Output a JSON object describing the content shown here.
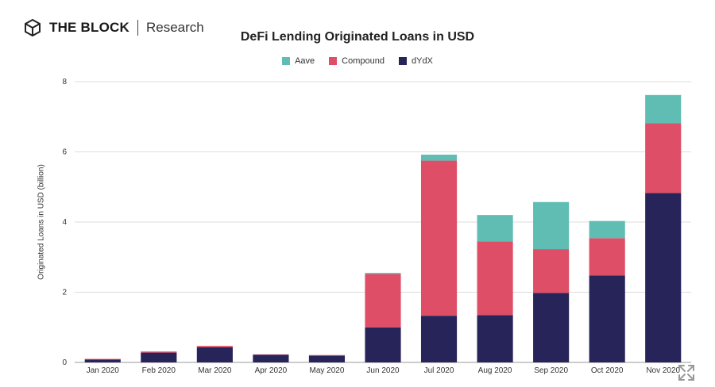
{
  "brand": {
    "name": "THE BLOCK",
    "sub": "Research"
  },
  "chart_data": {
    "type": "bar",
    "stacked": true,
    "title": "DeFi Lending Originated Loans in USD",
    "ylabel": "Originated Loans in USD (billion)",
    "xlabel": "",
    "ylim": [
      0,
      8
    ],
    "yticks": [
      0,
      2,
      4,
      6,
      8
    ],
    "grid": true,
    "legend_position": "top",
    "categories": [
      "Jan 2020",
      "Feb 2020",
      "Mar 2020",
      "Apr 2020",
      "May 2020",
      "Jun 2020",
      "Jul 2020",
      "Aug 2020",
      "Sep 2020",
      "Oct 2020",
      "Nov 2020"
    ],
    "series": [
      {
        "name": "dYdX",
        "color": "#27245a",
        "values": [
          0.08,
          0.28,
          0.43,
          0.22,
          0.19,
          1.0,
          1.33,
          1.35,
          1.98,
          2.48,
          4.83
        ]
      },
      {
        "name": "Compound",
        "color": "#de4e67",
        "values": [
          0.02,
          0.03,
          0.04,
          0.01,
          0.02,
          1.52,
          4.42,
          2.1,
          1.25,
          1.06,
          1.99
        ]
      },
      {
        "name": "Aave",
        "color": "#5fbdb3",
        "values": [
          0.0,
          0.0,
          0.0,
          0.0,
          0.0,
          0.03,
          0.17,
          0.75,
          1.34,
          0.49,
          0.8
        ]
      }
    ],
    "legend": [
      "Aave",
      "Compound",
      "dYdX"
    ]
  },
  "icons": {
    "logo": "cube-logo-icon",
    "expand": "expand-icon"
  }
}
